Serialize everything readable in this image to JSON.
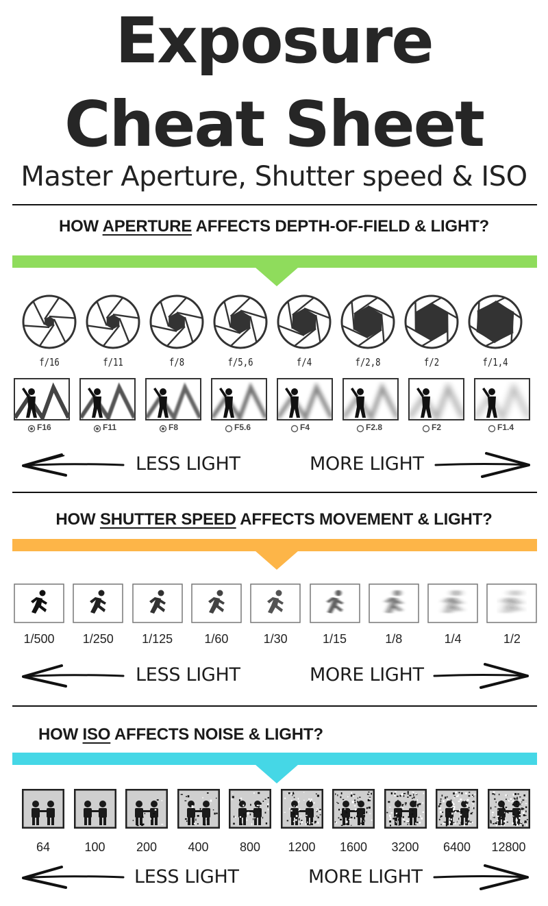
{
  "header": {
    "title_line1": "Exposure",
    "title_line2": "Cheat Sheet",
    "subtitle": "Master Aperture, Shutter speed & ISO"
  },
  "colors": {
    "aperture_band": "#8FDC5C",
    "shutter_band": "#FDB548",
    "iso_band": "#45D7E6",
    "ink": "#262626"
  },
  "aperture": {
    "heading_prefix": "HOW ",
    "heading_keyword": "APERTURE",
    "heading_suffix": " AFFECTS DEPTH-OF-FIELD & LIGHT?",
    "stops": [
      {
        "label": "f/16",
        "open": 0.22
      },
      {
        "label": "f/11",
        "open": 0.3
      },
      {
        "label": "f/8",
        "open": 0.38
      },
      {
        "label": "f/5,6",
        "open": 0.46
      },
      {
        "label": "f/4",
        "open": 0.55
      },
      {
        "label": "f/2,8",
        "open": 0.64
      },
      {
        "label": "f/2",
        "open": 0.74
      },
      {
        "label": "f/1,4",
        "open": 0.84
      }
    ],
    "dof_labels": [
      "F16",
      "F11",
      "F8",
      "F5.6",
      "F4",
      "F2.8",
      "F2",
      "F1.4"
    ],
    "less_light": "LESS LIGHT",
    "more_light": "MORE LIGHT"
  },
  "shutter": {
    "heading_prefix": "HOW ",
    "heading_keyword": "SHUTTER SPEED",
    "heading_suffix": " AFFECTS MOVEMENT & LIGHT?",
    "speeds": [
      "1/500",
      "1/250",
      "1/125",
      "1/60",
      "1/30",
      "1/15",
      "1/8",
      "1/4",
      "1/2"
    ],
    "less_light": "LESS LIGHT",
    "more_light": "MORE LIGHT"
  },
  "iso": {
    "heading_prefix": "HOW ",
    "heading_keyword": "ISO",
    "heading_suffix": " AFFECTS NOISE & LIGHT?",
    "values": [
      "64",
      "100",
      "200",
      "400",
      "800",
      "1200",
      "1600",
      "3200",
      "6400",
      "12800"
    ],
    "less_light": "LESS LIGHT",
    "more_light": "MORE LIGHT"
  }
}
